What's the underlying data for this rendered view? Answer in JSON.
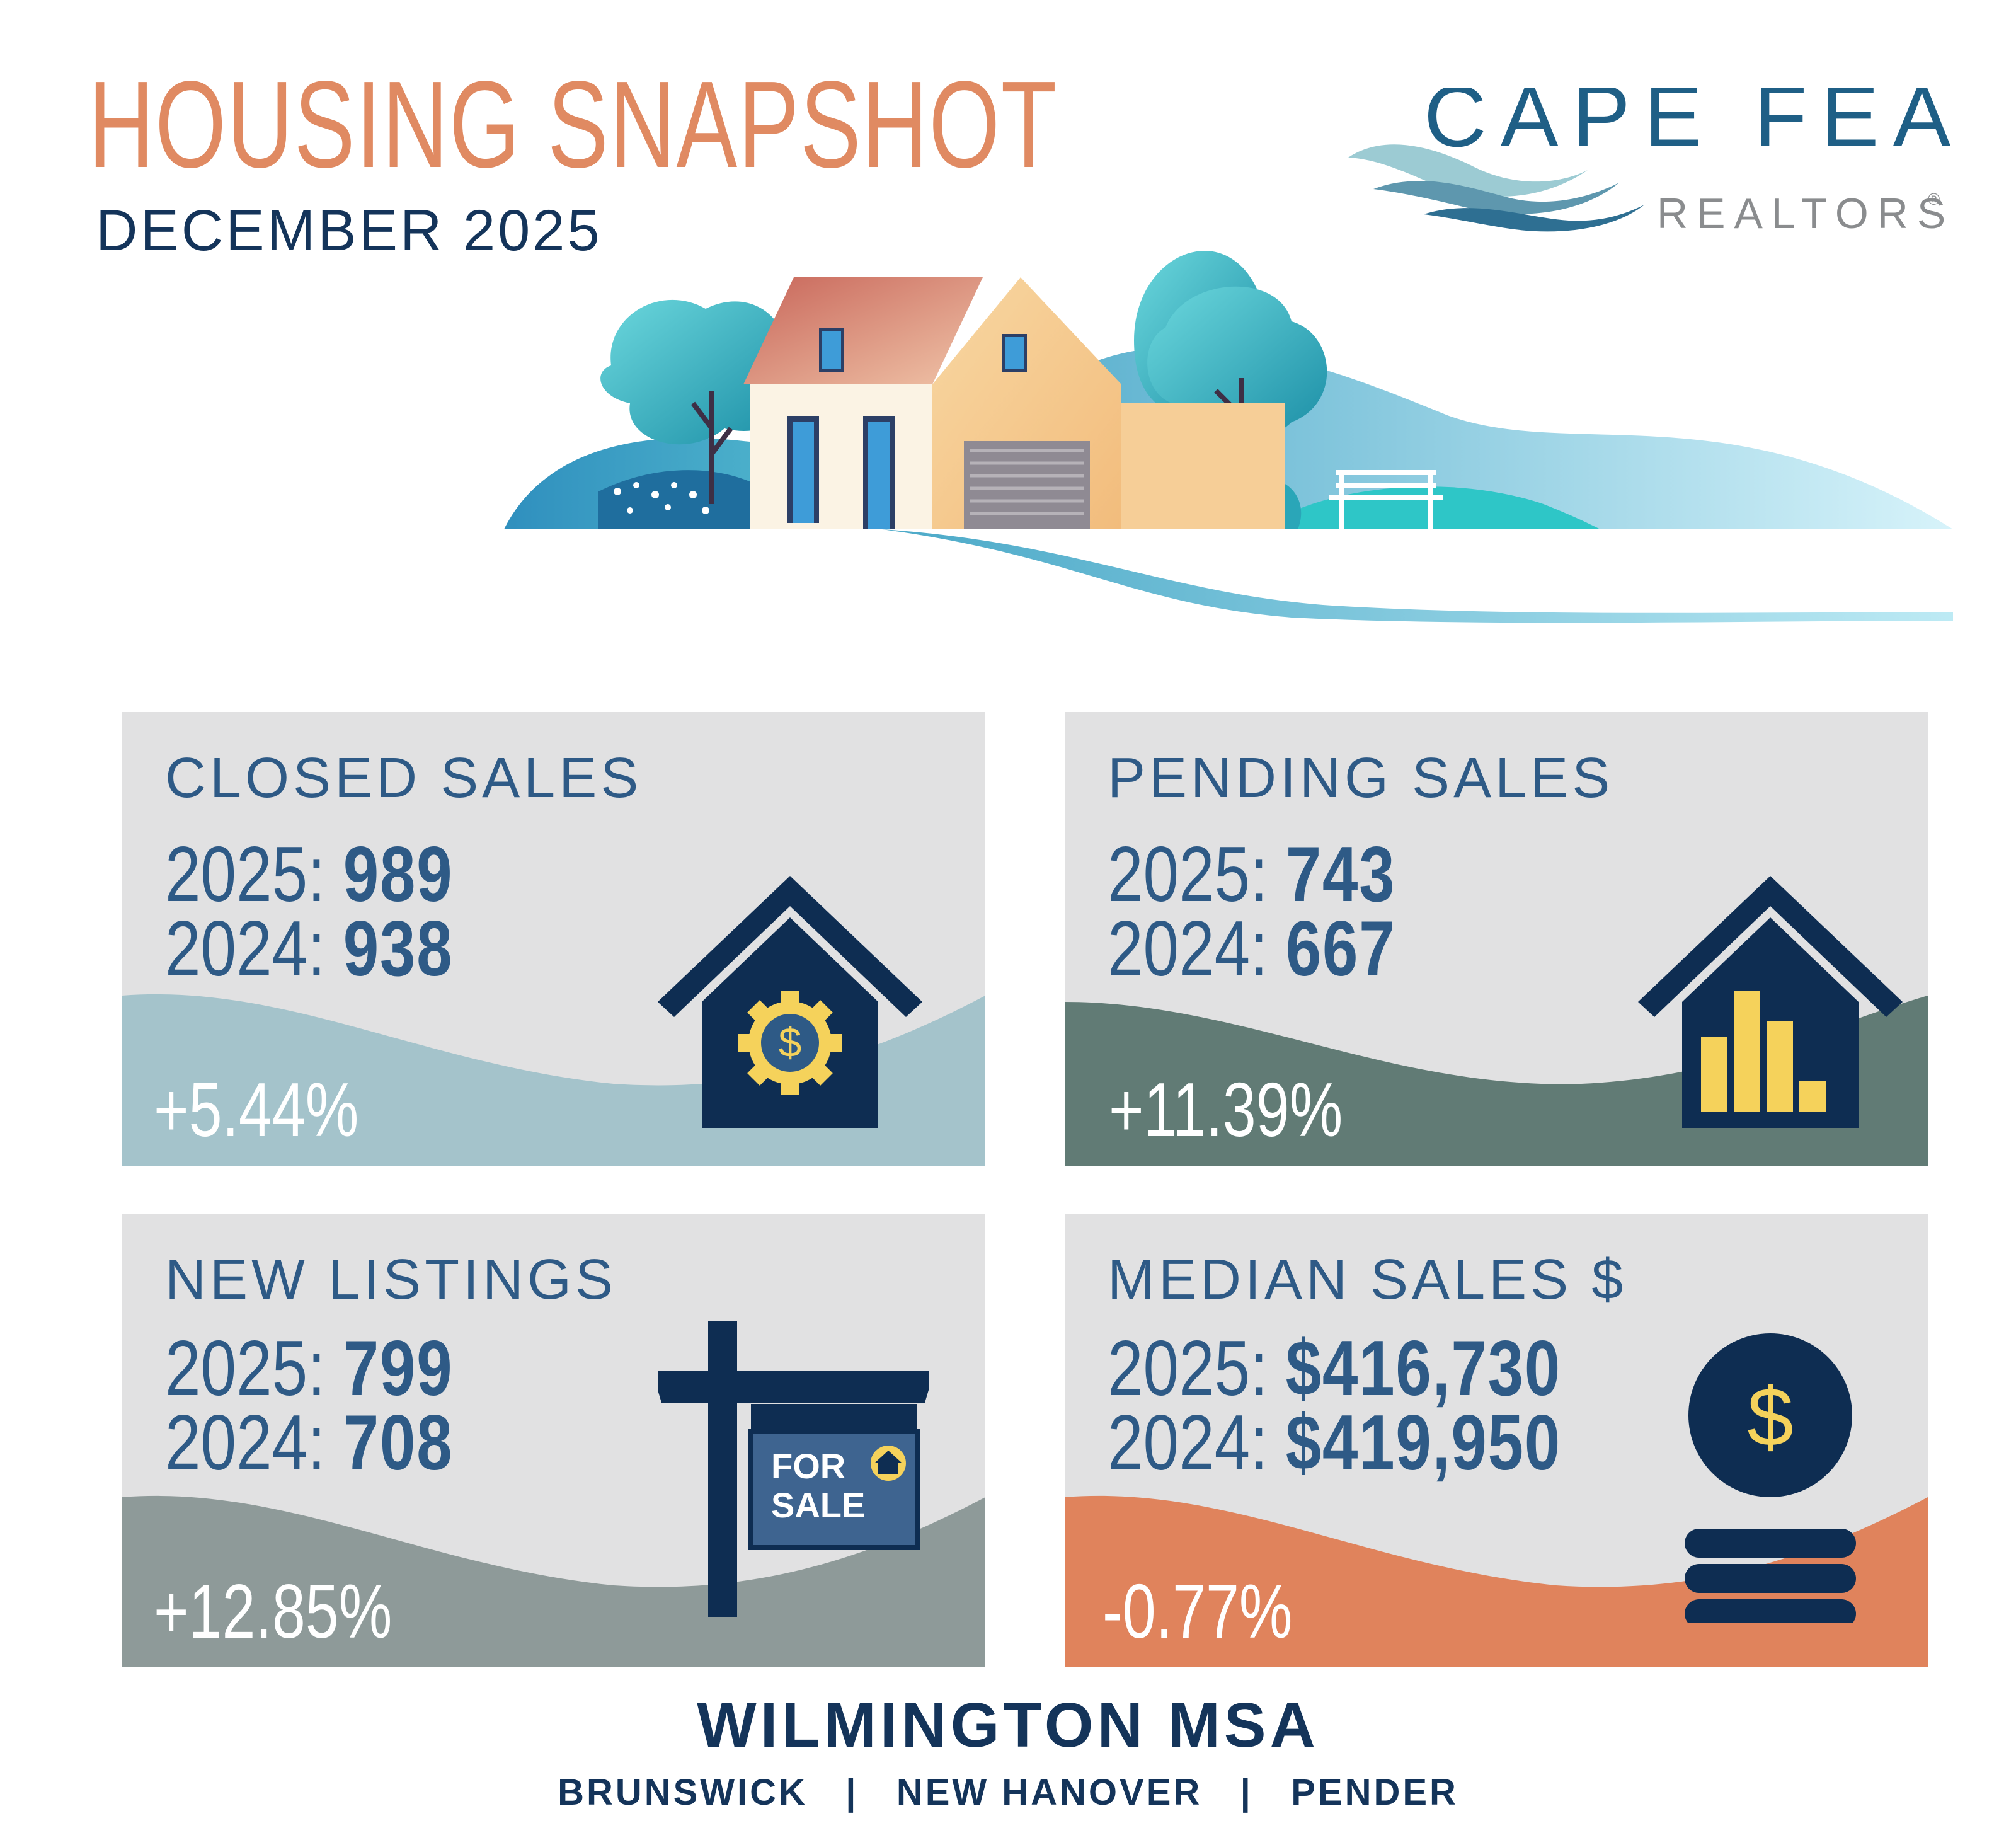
{
  "header": {
    "title": "HOUSING SNAPSHOT",
    "subtitle": "DECEMBER 2025"
  },
  "logo": {
    "line1": "CAPE FEAR",
    "line2": "REALTORS",
    "mark": "®"
  },
  "cards": [
    {
      "title": "CLOSED SALES",
      "row1_label": "2025:",
      "row1_value": "989",
      "row2_label": "2024:",
      "row2_value": "938",
      "change": "+5.44%",
      "wave_color": "#A4C3CB",
      "icon": "house-gear-dollar-icon"
    },
    {
      "title": "PENDING SALES",
      "row1_label": "2025:",
      "row1_value": "743",
      "row2_label": "2024:",
      "row2_value": "667",
      "change": "+11.39%",
      "wave_color": "#617B75",
      "icon": "house-bar-chart-icon"
    },
    {
      "title": "NEW LISTINGS",
      "row1_label": "2025:",
      "row1_value": "799",
      "row2_label": "2024:",
      "row2_value": "708",
      "change": "+12.85%",
      "wave_color": "#8E9A99",
      "icon": "for-sale-sign-icon",
      "sign_line1": "FOR",
      "sign_line2": "SALE"
    },
    {
      "title": "MEDIAN SALES $",
      "row1_label": "2025:",
      "row1_value": "$416,730",
      "row2_label": "2024:",
      "row2_value": "$419,950",
      "change": "-0.77%",
      "wave_color": "#E0835C",
      "icon": "coin-stack-icon",
      "coin_symbol": "$"
    }
  ],
  "footer": {
    "title": "WILMINGTON MSA",
    "counties": "BRUNSWICK   |   NEW HANOVER   |   PENDER"
  },
  "colors": {
    "title": "#E08A62",
    "navy": "#14345A",
    "card_text": "#2E5A86",
    "card_bg": "#E1E1E2",
    "icon_navy": "#0E2D52",
    "icon_yellow": "#F5D25B"
  }
}
